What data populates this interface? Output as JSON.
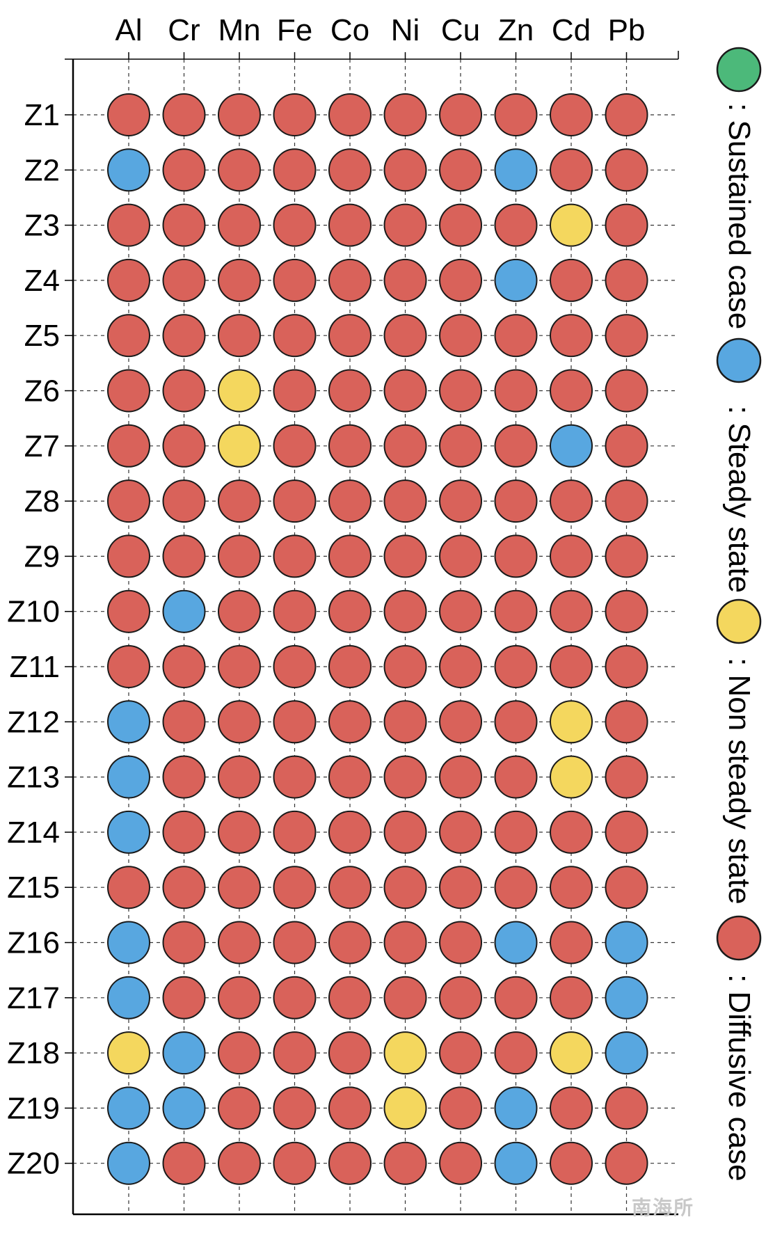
{
  "chart_data": {
    "type": "scatter",
    "title": "",
    "xlabel": "",
    "ylabel": "",
    "grid": true,
    "legend_position": "right (vertical)",
    "columns": [
      "Al",
      "Cr",
      "Mn",
      "Fe",
      "Co",
      "Ni",
      "Cu",
      "Zn",
      "Cd",
      "Pb"
    ],
    "rows": [
      "Z1",
      "Z2",
      "Z3",
      "Z4",
      "Z5",
      "Z6",
      "Z7",
      "Z8",
      "Z9",
      "Z10",
      "Z11",
      "Z12",
      "Z13",
      "Z14",
      "Z15",
      "Z16",
      "Z17",
      "Z18",
      "Z19",
      "Z20"
    ],
    "categories": [
      {
        "key": "sustained",
        "label": ": Sustained case",
        "color": "#4cb97a"
      },
      {
        "key": "steady",
        "label": ": Steady state",
        "color": "#58a7e0"
      },
      {
        "key": "nonsteady",
        "label": ": Non steady state",
        "color": "#f4d75e"
      },
      {
        "key": "diffusive",
        "label": ": Diffusive case",
        "color": "#d9625a"
      }
    ],
    "values": [
      [
        "diffusive",
        "diffusive",
        "diffusive",
        "diffusive",
        "diffusive",
        "diffusive",
        "diffusive",
        "diffusive",
        "diffusive",
        "diffusive"
      ],
      [
        "steady",
        "diffusive",
        "diffusive",
        "diffusive",
        "diffusive",
        "diffusive",
        "diffusive",
        "steady",
        "diffusive",
        "diffusive"
      ],
      [
        "diffusive",
        "diffusive",
        "diffusive",
        "diffusive",
        "diffusive",
        "diffusive",
        "diffusive",
        "diffusive",
        "nonsteady",
        "diffusive"
      ],
      [
        "diffusive",
        "diffusive",
        "diffusive",
        "diffusive",
        "diffusive",
        "diffusive",
        "diffusive",
        "steady",
        "diffusive",
        "diffusive"
      ],
      [
        "diffusive",
        "diffusive",
        "diffusive",
        "diffusive",
        "diffusive",
        "diffusive",
        "diffusive",
        "diffusive",
        "diffusive",
        "diffusive"
      ],
      [
        "diffusive",
        "diffusive",
        "nonsteady",
        "diffusive",
        "diffusive",
        "diffusive",
        "diffusive",
        "diffusive",
        "diffusive",
        "diffusive"
      ],
      [
        "diffusive",
        "diffusive",
        "nonsteady",
        "diffusive",
        "diffusive",
        "diffusive",
        "diffusive",
        "diffusive",
        "steady",
        "diffusive"
      ],
      [
        "diffusive",
        "diffusive",
        "diffusive",
        "diffusive",
        "diffusive",
        "diffusive",
        "diffusive",
        "diffusive",
        "diffusive",
        "diffusive"
      ],
      [
        "diffusive",
        "diffusive",
        "diffusive",
        "diffusive",
        "diffusive",
        "diffusive",
        "diffusive",
        "diffusive",
        "diffusive",
        "diffusive"
      ],
      [
        "diffusive",
        "steady",
        "diffusive",
        "diffusive",
        "diffusive",
        "diffusive",
        "diffusive",
        "diffusive",
        "diffusive",
        "diffusive"
      ],
      [
        "diffusive",
        "diffusive",
        "diffusive",
        "diffusive",
        "diffusive",
        "diffusive",
        "diffusive",
        "diffusive",
        "diffusive",
        "diffusive"
      ],
      [
        "steady",
        "diffusive",
        "diffusive",
        "diffusive",
        "diffusive",
        "diffusive",
        "diffusive",
        "diffusive",
        "nonsteady",
        "diffusive"
      ],
      [
        "steady",
        "diffusive",
        "diffusive",
        "diffusive",
        "diffusive",
        "diffusive",
        "diffusive",
        "diffusive",
        "nonsteady",
        "diffusive"
      ],
      [
        "steady",
        "diffusive",
        "diffusive",
        "diffusive",
        "diffusive",
        "diffusive",
        "diffusive",
        "diffusive",
        "diffusive",
        "diffusive"
      ],
      [
        "diffusive",
        "diffusive",
        "diffusive",
        "diffusive",
        "diffusive",
        "diffusive",
        "diffusive",
        "diffusive",
        "diffusive",
        "diffusive"
      ],
      [
        "steady",
        "diffusive",
        "diffusive",
        "diffusive",
        "diffusive",
        "diffusive",
        "diffusive",
        "steady",
        "diffusive",
        "steady"
      ],
      [
        "steady",
        "diffusive",
        "diffusive",
        "diffusive",
        "diffusive",
        "diffusive",
        "diffusive",
        "diffusive",
        "diffusive",
        "steady"
      ],
      [
        "nonsteady",
        "steady",
        "diffusive",
        "diffusive",
        "diffusive",
        "nonsteady",
        "diffusive",
        "diffusive",
        "nonsteady",
        "steady"
      ],
      [
        "steady",
        "steady",
        "diffusive",
        "diffusive",
        "diffusive",
        "nonsteady",
        "diffusive",
        "steady",
        "diffusive",
        "diffusive"
      ],
      [
        "steady",
        "diffusive",
        "diffusive",
        "diffusive",
        "diffusive",
        "diffusive",
        "diffusive",
        "steady",
        "diffusive",
        "diffusive"
      ]
    ]
  },
  "watermark": "南海所"
}
